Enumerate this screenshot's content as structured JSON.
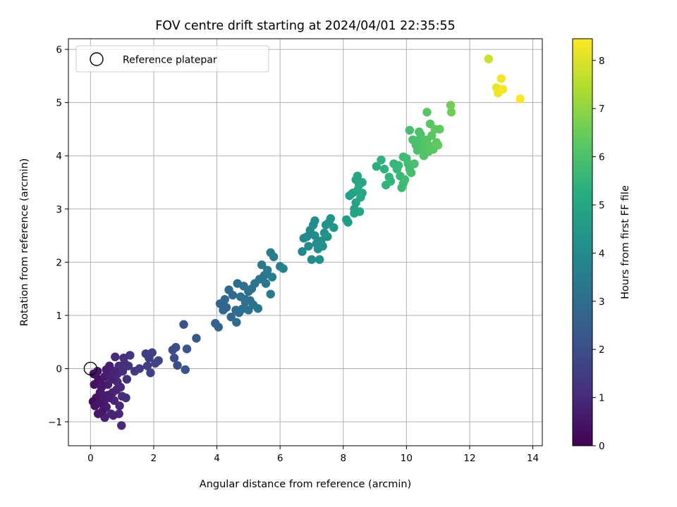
{
  "chart_data": {
    "type": "scatter",
    "title": "FOV centre drift starting at 2024/04/01 22:35:55",
    "xlabel": "Angular distance from reference (arcmin)",
    "ylabel": "Rotation from reference (arcmin)",
    "xlim": [
      -0.7,
      14.3
    ],
    "ylim": [
      -1.45,
      6.2
    ],
    "x_ticks": [
      0,
      2,
      4,
      6,
      8,
      10,
      12,
      14
    ],
    "y_ticks": [
      -1,
      0,
      1,
      2,
      3,
      4,
      5,
      6
    ],
    "grid": true,
    "legend": {
      "placement": "upper-left",
      "entries": [
        "Reference platepar"
      ]
    },
    "reference_point": {
      "x": 0,
      "y": 0
    },
    "colorbar": {
      "label": "Hours from first FF file",
      "colormap": "viridis",
      "range": [
        0,
        8.45
      ],
      "ticks": [
        0,
        1,
        2,
        3,
        4,
        5,
        6,
        7,
        8
      ]
    },
    "points": [
      [
        0.1,
        -0.1,
        0.3
      ],
      [
        0.25,
        -0.2,
        0.4
      ],
      [
        0.12,
        -0.3,
        0.35
      ],
      [
        0.3,
        -0.45,
        0.5
      ],
      [
        0.18,
        -0.55,
        0.45
      ],
      [
        0.08,
        -0.62,
        0.3
      ],
      [
        0.14,
        -0.7,
        0.4
      ],
      [
        0.24,
        -0.85,
        0.55
      ],
      [
        0.42,
        -0.65,
        0.6
      ],
      [
        0.5,
        -0.72,
        0.7
      ],
      [
        0.35,
        -0.35,
        0.6
      ],
      [
        0.45,
        -0.15,
        0.65
      ],
      [
        0.55,
        -0.3,
        0.7
      ],
      [
        0.62,
        -0.1,
        0.8
      ],
      [
        0.7,
        -0.45,
        0.85
      ],
      [
        0.75,
        -0.6,
        0.9
      ],
      [
        0.85,
        -0.25,
        1.0
      ],
      [
        0.9,
        0.05,
        1.05
      ],
      [
        0.78,
        0.22,
        1.1
      ],
      [
        0.92,
        -0.7,
        1.0
      ],
      [
        0.65,
        -0.85,
        0.9
      ],
      [
        0.45,
        -0.92,
        0.8
      ],
      [
        0.98,
        -1.07,
        1.0
      ],
      [
        0.33,
        -0.28,
        0.55
      ],
      [
        0.22,
        -0.05,
        0.45
      ],
      [
        0.4,
        -0.5,
        0.6
      ],
      [
        0.58,
        -0.55,
        0.75
      ],
      [
        0.68,
        -0.2,
        0.8
      ],
      [
        0.85,
        -0.1,
        0.95
      ],
      [
        0.95,
        -0.35,
        1.0
      ],
      [
        1.02,
        -0.05,
        1.1
      ],
      [
        1.08,
        0.1,
        1.15
      ],
      [
        1.15,
        -0.2,
        1.2
      ],
      [
        1.2,
        0.05,
        1.25
      ],
      [
        1.12,
        -0.55,
        1.15
      ],
      [
        1.0,
        -0.52,
        1.1
      ],
      [
        0.9,
        -0.85,
        0.95
      ],
      [
        0.72,
        -0.88,
        0.85
      ],
      [
        0.82,
        -0.4,
        0.9
      ],
      [
        0.6,
        0.05,
        0.75
      ],
      [
        0.5,
        -0.02,
        0.7
      ],
      [
        1.25,
        0.25,
        1.3
      ],
      [
        1.05,
        0.2,
        1.2
      ],
      [
        0.3,
        -0.65,
        0.5
      ],
      [
        0.38,
        -0.8,
        0.55
      ],
      [
        0.55,
        -0.5,
        0.7
      ],
      [
        0.75,
        -0.05,
        0.85
      ],
      [
        1.75,
        0.28,
        1.5
      ],
      [
        1.85,
        0.2,
        1.55
      ],
      [
        1.95,
        0.3,
        1.6
      ],
      [
        2.05,
        0.1,
        1.65
      ],
      [
        1.8,
        0.05,
        1.55
      ],
      [
        1.9,
        -0.08,
        1.6
      ],
      [
        2.15,
        0.15,
        1.7
      ],
      [
        1.55,
        0.0,
        1.45
      ],
      [
        1.4,
        -0.05,
        1.4
      ],
      [
        2.7,
        0.4,
        2.0
      ],
      [
        2.6,
        0.35,
        1.95
      ],
      [
        2.65,
        0.2,
        1.95
      ],
      [
        2.75,
        0.06,
        2.0
      ],
      [
        2.95,
        0.83,
        2.1
      ],
      [
        3.05,
        0.37,
        2.2
      ],
      [
        3.35,
        0.57,
        2.3
      ],
      [
        3.0,
        -0.02,
        2.15
      ],
      [
        3.95,
        0.85,
        2.6
      ],
      [
        4.05,
        0.78,
        2.65
      ],
      [
        4.1,
        1.22,
        2.7
      ],
      [
        4.2,
        1.1,
        2.75
      ],
      [
        4.3,
        1.15,
        2.8
      ],
      [
        4.38,
        1.48,
        2.85
      ],
      [
        4.5,
        1.38,
        2.9
      ],
      [
        4.45,
        0.97,
        2.85
      ],
      [
        4.62,
        0.87,
        2.95
      ],
      [
        4.7,
        1.05,
        3.0
      ],
      [
        4.8,
        1.12,
        3.05
      ],
      [
        4.75,
        1.35,
        3.05
      ],
      [
        4.85,
        1.55,
        3.1
      ],
      [
        4.9,
        1.3,
        3.1
      ],
      [
        5.0,
        1.45,
        3.15
      ],
      [
        5.1,
        1.5,
        3.2
      ],
      [
        5.05,
        1.28,
        3.2
      ],
      [
        5.15,
        1.2,
        3.2
      ],
      [
        5.3,
        1.13,
        3.25
      ],
      [
        5.35,
        1.68,
        3.3
      ],
      [
        5.42,
        1.95,
        3.35
      ],
      [
        5.5,
        1.75,
        3.4
      ],
      [
        5.6,
        1.85,
        3.45
      ],
      [
        5.7,
        2.18,
        3.5
      ],
      [
        5.75,
        1.72,
        3.5
      ],
      [
        5.7,
        1.4,
        3.45
      ],
      [
        5.8,
        2.1,
        3.55
      ],
      [
        6.0,
        1.92,
        3.65
      ],
      [
        6.1,
        1.88,
        3.7
      ],
      [
        4.6,
        1.1,
        2.95
      ],
      [
        4.9,
        1.25,
        3.1
      ],
      [
        5.2,
        1.6,
        3.25
      ],
      [
        5.55,
        1.6,
        3.4
      ],
      [
        4.25,
        1.3,
        2.8
      ],
      [
        4.65,
        1.6,
        3.0
      ],
      [
        5.0,
        1.1,
        3.15
      ],
      [
        6.7,
        2.2,
        3.9
      ],
      [
        6.75,
        2.45,
        3.95
      ],
      [
        6.9,
        2.3,
        4.0
      ],
      [
        7.0,
        2.05,
        4.05
      ],
      [
        6.95,
        2.6,
        4.05
      ],
      [
        7.05,
        2.7,
        4.1
      ],
      [
        7.1,
        2.5,
        4.1
      ],
      [
        7.15,
        2.35,
        4.15
      ],
      [
        7.2,
        2.25,
        4.15
      ],
      [
        7.25,
        2.05,
        4.2
      ],
      [
        7.3,
        2.4,
        4.2
      ],
      [
        7.4,
        2.55,
        4.25
      ],
      [
        7.45,
        2.7,
        4.3
      ],
      [
        7.55,
        2.75,
        4.35
      ],
      [
        7.6,
        2.82,
        4.4
      ],
      [
        7.7,
        2.65,
        4.45
      ],
      [
        7.1,
        2.78,
        4.1
      ],
      [
        7.35,
        2.3,
        4.25
      ],
      [
        6.85,
        2.48,
        4.0
      ],
      [
        7.5,
        2.48,
        4.3
      ],
      [
        8.1,
        2.8,
        4.7
      ],
      [
        8.15,
        2.75,
        4.75
      ],
      [
        8.2,
        3.25,
        4.8
      ],
      [
        8.3,
        3.3,
        4.85
      ],
      [
        8.35,
        3.0,
        4.9
      ],
      [
        8.4,
        3.12,
        4.9
      ],
      [
        8.45,
        3.35,
        4.95
      ],
      [
        8.45,
        3.62,
        4.95
      ],
      [
        8.5,
        3.45,
        5.0
      ],
      [
        8.55,
        3.22,
        5.0
      ],
      [
        8.6,
        3.3,
        5.05
      ],
      [
        8.52,
        2.95,
        5.0
      ],
      [
        8.35,
        2.92,
        4.9
      ],
      [
        8.6,
        3.5,
        5.05
      ],
      [
        8.4,
        3.55,
        4.95
      ],
      [
        9.05,
        3.8,
        5.3
      ],
      [
        9.2,
        3.92,
        5.4
      ],
      [
        9.3,
        3.75,
        5.45
      ],
      [
        9.35,
        3.45,
        5.5
      ],
      [
        9.45,
        3.6,
        5.55
      ],
      [
        9.5,
        3.52,
        5.55
      ],
      [
        9.6,
        3.85,
        5.6
      ],
      [
        9.7,
        3.75,
        5.65
      ],
      [
        9.8,
        3.62,
        5.7
      ],
      [
        9.9,
        3.48,
        5.75
      ],
      [
        9.85,
        3.4,
        5.75
      ],
      [
        9.95,
        3.55,
        5.8
      ],
      [
        10.0,
        3.95,
        5.8
      ],
      [
        10.05,
        3.85,
        5.85
      ],
      [
        10.1,
        3.75,
        5.85
      ],
      [
        10.15,
        3.68,
        5.9
      ],
      [
        9.9,
        3.98,
        5.8
      ],
      [
        9.75,
        3.82,
        5.7
      ],
      [
        10.25,
        3.85,
        5.95
      ],
      [
        10.1,
        4.48,
        5.9
      ],
      [
        10.2,
        4.3,
        5.95
      ],
      [
        10.3,
        4.2,
        6.0
      ],
      [
        10.35,
        4.1,
        6.0
      ],
      [
        10.4,
        4.45,
        6.05
      ],
      [
        10.45,
        4.35,
        6.05
      ],
      [
        10.5,
        4.25,
        6.1
      ],
      [
        10.55,
        4.18,
        6.1
      ],
      [
        10.6,
        4.05,
        6.15
      ],
      [
        10.65,
        4.3,
        6.15
      ],
      [
        10.7,
        4.2,
        6.2
      ],
      [
        10.75,
        4.6,
        6.2
      ],
      [
        10.65,
        4.82,
        6.2
      ],
      [
        10.8,
        4.38,
        6.25
      ],
      [
        10.85,
        4.12,
        6.25
      ],
      [
        10.9,
        4.5,
        6.3
      ],
      [
        10.95,
        4.25,
        6.3
      ],
      [
        11.0,
        4.2,
        6.35
      ],
      [
        11.05,
        4.5,
        6.35
      ],
      [
        10.45,
        4.4,
        6.05
      ],
      [
        10.55,
        4.0,
        6.1
      ],
      [
        10.7,
        4.08,
        6.2
      ],
      [
        10.3,
        4.28,
        6.0
      ],
      [
        11.4,
        4.95,
        6.6
      ],
      [
        11.42,
        4.82,
        6.6
      ],
      [
        12.6,
        5.82,
        7.8
      ],
      [
        12.85,
        5.28,
        8.2
      ],
      [
        12.9,
        5.18,
        8.25
      ],
      [
        13.0,
        5.45,
        8.3
      ],
      [
        13.05,
        5.25,
        8.35
      ],
      [
        13.6,
        5.07,
        8.4
      ]
    ]
  }
}
